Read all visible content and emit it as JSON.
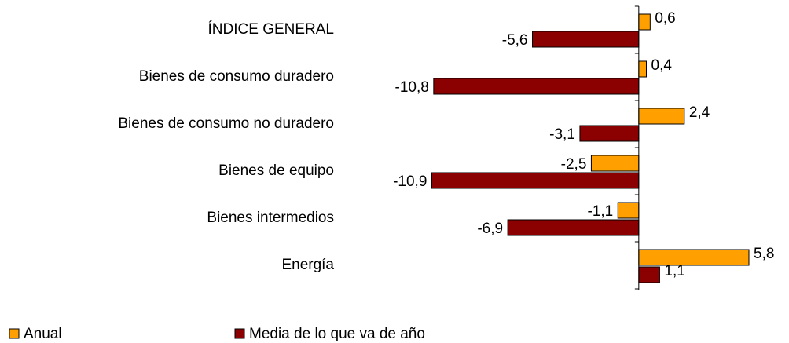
{
  "chart_data": {
    "type": "hbar",
    "categories": [
      "ÍNDICE GENERAL",
      "Bienes de consumo duradero",
      "Bienes de consumo no duradero",
      "Bienes de equipo",
      "Bienes intermedios",
      "Energía"
    ],
    "series": [
      {
        "name": "Anual",
        "color": "#ffa000",
        "values": [
          0.6,
          0.4,
          2.4,
          -2.5,
          -1.1,
          5.8
        ],
        "value_labels": [
          "0,6",
          "0,4",
          "2,4",
          "-2,5",
          "-1,1",
          "5,8"
        ]
      },
      {
        "name": "Media de lo que va de año",
        "color": "#8b0000",
        "values": [
          -5.6,
          -10.8,
          -3.1,
          -10.9,
          -6.9,
          1.1
        ],
        "value_labels": [
          "-5,6",
          "-10,8",
          "-3,1",
          "-10,9",
          "-6,9",
          "1,1"
        ]
      }
    ],
    "xlim": [
      -11,
      7
    ],
    "legend": "bottom"
  }
}
